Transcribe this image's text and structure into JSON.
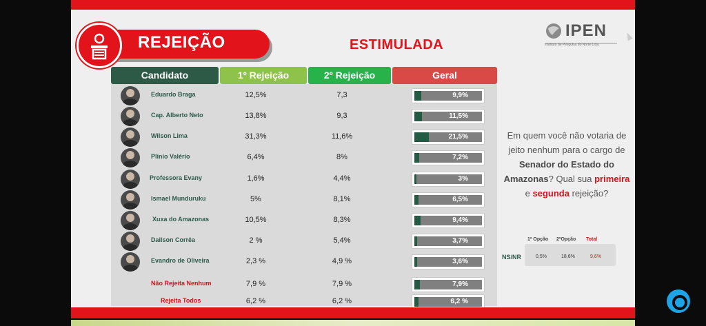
{
  "header": {
    "title": "REJEIÇÃO",
    "subtitle": "ESTIMULADA",
    "logo_text": "IPEN",
    "logo_subtext": "Instituto de Pesquisa do Norte Ltda."
  },
  "table": {
    "headers": {
      "candidate": "Candidato",
      "first": "1º Rejeição",
      "second": "2º Rejeição",
      "overall": "Geral"
    },
    "header_colors": {
      "candidate": "#2c5a46",
      "first": "#8fc24a",
      "second": "#28b34a",
      "overall": "#d94a46"
    }
  },
  "chart_data": {
    "type": "bar",
    "categories": [
      "Eduardo Braga",
      "Cap. Alberto Neto",
      "Wilson Lima",
      "Plínio Valério",
      "Professora Evany",
      "Ismael Munduruku",
      "Xuxa do Amazonas",
      "Dailson Corrêa",
      "Evandro de Oliveira",
      "Não Rejeita Nenhum",
      "Rejeita Todos"
    ],
    "first_rejection": [
      "12,5%",
      "13,8%",
      "31,3%",
      "6,4%",
      "1,6%",
      "5%",
      "10,5%",
      "2 %",
      "2,3 %",
      "7,9 %",
      "6,2 %"
    ],
    "second_rejection": [
      "7,3",
      "9,3",
      "11,6%",
      "8%",
      "4,4%",
      "8,1%",
      "8,3%",
      "5,4%",
      "4,9 %",
      "7,9 %",
      "6,2 %"
    ],
    "overall_labels": [
      "9,9%",
      "11,5%",
      "21,5%",
      "7,2%",
      "3%",
      "6,5%",
      "9,4%",
      "3,7%",
      "3,6%",
      "7,9%",
      "6,2 %"
    ],
    "values": [
      9.9,
      11.5,
      21.5,
      7.2,
      3,
      6.5,
      9.4,
      3.7,
      3.6,
      7.9,
      6.2
    ],
    "ylim": [
      0,
      100
    ],
    "bar_color": "#245a43",
    "track_color": "#808080"
  },
  "question": {
    "part1": "Em quem você não votaria de jeito nenhum para o cargo de",
    "emph1": "Senador do Estado do Amazonas",
    "part2": "? Qual sua",
    "emph2": "primeira",
    "part3": "e",
    "emph3": "segunda",
    "part4": "rejeição?"
  },
  "ns": {
    "label": "NS/NR",
    "h1": "1º Opção",
    "h2": "2ºOpção",
    "h3": "Total",
    "v1": "0,5%",
    "v2": "18,6%",
    "v3": "9,6%"
  }
}
